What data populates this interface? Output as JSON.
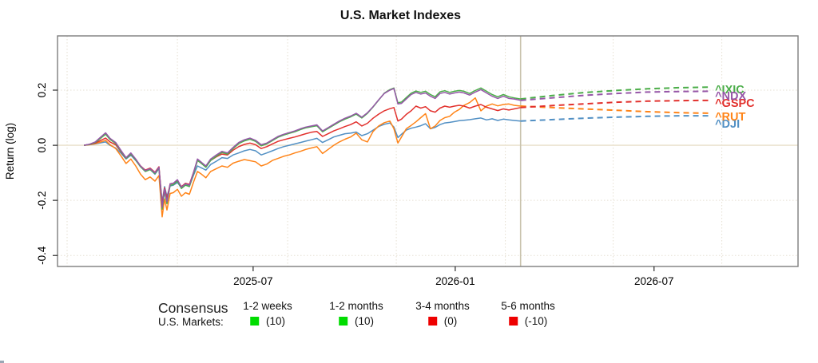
{
  "title": "U.S. Market Indexes",
  "chart_data": {
    "type": "line",
    "title": "U.S. Market Indexes",
    "xlabel": "",
    "ylabel": "Return (log)",
    "xlim": [
      2025.008,
      2026.855
    ],
    "ylim": [
      -0.44,
      0.397
    ],
    "x_ticks": [
      {
        "v": 2025.496,
        "label": "2025-07"
      },
      {
        "v": 2026.0,
        "label": "2026-01"
      },
      {
        "v": 2026.496,
        "label": "2026-07"
      }
    ],
    "y_ticks": [
      {
        "v": 0.2,
        "label": "0.2"
      },
      {
        "v": 0.0,
        "label": "0.0"
      },
      {
        "v": -0.2,
        "label": "-0.2"
      },
      {
        "v": -0.4,
        "label": "-0.4"
      }
    ],
    "x_gridlines": [
      2025.032,
      2025.307,
      2025.582,
      2025.853,
      2026.125,
      2026.394,
      2026.665
    ],
    "y_gridlines": [
      0.2,
      -0.2,
      -0.4
    ],
    "zero_line": 0.0,
    "today_line": 2026.163,
    "x_solid": [
      2025.074,
      2025.088,
      2025.102,
      2025.116,
      2025.128,
      2025.139,
      2025.153,
      2025.167,
      2025.179,
      2025.191,
      2025.203,
      2025.215,
      2025.227,
      2025.239,
      2025.251,
      2025.261,
      2025.269,
      2025.275,
      2025.281,
      2025.289,
      2025.297,
      2025.307,
      2025.317,
      2025.327,
      2025.337,
      2025.347,
      2025.357,
      2025.367,
      2025.378,
      2025.39,
      2025.404,
      2025.418,
      2025.432,
      2025.446,
      2025.46,
      2025.474,
      2025.488,
      2025.502,
      2025.516,
      2025.53,
      2025.544,
      2025.558,
      2025.572,
      2025.586,
      2025.6,
      2025.614,
      2025.627,
      2025.641,
      2025.655,
      2025.669,
      2025.683,
      2025.697,
      2025.711,
      2025.725,
      2025.739,
      2025.753,
      2025.767,
      2025.781,
      2025.795,
      2025.809,
      2025.823,
      2025.837,
      2025.847,
      2025.857,
      2025.866,
      2025.878,
      2025.89,
      2025.902,
      2025.914,
      2025.926,
      2025.938,
      2025.95,
      2025.962,
      2025.974,
      2025.986,
      2025.998,
      2026.01,
      2026.022,
      2026.036,
      2026.05,
      2026.064,
      2026.078,
      2026.092,
      2026.106,
      2026.12,
      2026.134,
      2026.147,
      2026.163
    ],
    "x_forecast": [
      2026.163,
      2026.24,
      2026.32,
      2026.4,
      2026.48,
      2026.56,
      2026.64
    ],
    "series": [
      {
        "name": "^DJI",
        "color": "#5290c4",
        "label_value": 0.078,
        "values": [
          0.0,
          0.002,
          0.005,
          0.009,
          0.012,
          0.0,
          -0.01,
          -0.03,
          -0.05,
          -0.036,
          -0.055,
          -0.078,
          -0.095,
          -0.088,
          -0.105,
          -0.085,
          -0.205,
          -0.15,
          -0.185,
          -0.148,
          -0.145,
          -0.135,
          -0.155,
          -0.145,
          -0.148,
          -0.11,
          -0.075,
          -0.082,
          -0.09,
          -0.07,
          -0.058,
          -0.045,
          -0.048,
          -0.035,
          -0.028,
          -0.02,
          -0.015,
          -0.02,
          -0.035,
          -0.028,
          -0.02,
          -0.012,
          -0.005,
          0.0,
          0.005,
          0.01,
          0.015,
          0.02,
          0.025,
          0.01,
          0.02,
          0.03,
          0.036,
          0.042,
          0.044,
          0.048,
          0.035,
          0.042,
          0.055,
          0.068,
          0.076,
          0.081,
          0.066,
          0.028,
          0.04,
          0.055,
          0.062,
          0.066,
          0.071,
          0.078,
          0.06,
          0.065,
          0.075,
          0.081,
          0.083,
          0.086,
          0.089,
          0.091,
          0.093,
          0.096,
          0.099,
          0.092,
          0.096,
          0.09,
          0.095,
          0.092,
          0.09,
          0.088
        ],
        "forecast": [
          0.088,
          0.093,
          0.098,
          0.102,
          0.105,
          0.107,
          0.107
        ]
      },
      {
        "name": "^RUT",
        "color": "#ff8418",
        "label_value": 0.104,
        "values": [
          0.0,
          0.002,
          0.006,
          0.012,
          0.018,
          0.002,
          -0.012,
          -0.04,
          -0.066,
          -0.05,
          -0.075,
          -0.105,
          -0.125,
          -0.115,
          -0.13,
          -0.11,
          -0.26,
          -0.195,
          -0.235,
          -0.175,
          -0.172,
          -0.16,
          -0.185,
          -0.172,
          -0.178,
          -0.135,
          -0.095,
          -0.105,
          -0.118,
          -0.095,
          -0.085,
          -0.075,
          -0.08,
          -0.065,
          -0.058,
          -0.052,
          -0.056,
          -0.06,
          -0.075,
          -0.068,
          -0.055,
          -0.048,
          -0.04,
          -0.035,
          -0.028,
          -0.022,
          -0.015,
          -0.01,
          -0.005,
          -0.03,
          -0.015,
          0.0,
          0.012,
          0.022,
          0.03,
          0.044,
          0.02,
          0.012,
          0.05,
          0.07,
          0.082,
          0.088,
          0.06,
          0.008,
          0.03,
          0.06,
          0.072,
          0.085,
          0.1,
          0.115,
          0.06,
          0.07,
          0.09,
          0.1,
          0.105,
          0.12,
          0.13,
          0.145,
          0.155,
          0.172,
          0.125,
          0.142,
          0.15,
          0.143,
          0.148,
          0.15,
          0.145,
          0.142
        ],
        "forecast": [
          0.142,
          0.137,
          0.132,
          0.127,
          0.122,
          0.118,
          0.116
        ]
      },
      {
        "name": "^GSPC",
        "color": "#e2312d",
        "label_value": 0.154,
        "values": [
          0.0,
          0.003,
          0.008,
          0.018,
          0.026,
          0.012,
          0.002,
          -0.025,
          -0.048,
          -0.032,
          -0.052,
          -0.075,
          -0.09,
          -0.083,
          -0.098,
          -0.078,
          -0.215,
          -0.155,
          -0.195,
          -0.14,
          -0.138,
          -0.128,
          -0.15,
          -0.138,
          -0.142,
          -0.1,
          -0.055,
          -0.065,
          -0.078,
          -0.055,
          -0.042,
          -0.032,
          -0.035,
          -0.018,
          -0.005,
          0.003,
          0.008,
          0.002,
          -0.012,
          -0.005,
          0.005,
          0.014,
          0.02,
          0.025,
          0.03,
          0.036,
          0.042,
          0.047,
          0.05,
          0.032,
          0.042,
          0.052,
          0.06,
          0.068,
          0.075,
          0.085,
          0.07,
          0.08,
          0.098,
          0.113,
          0.125,
          0.133,
          0.137,
          0.088,
          0.095,
          0.112,
          0.125,
          0.142,
          0.135,
          0.14,
          0.125,
          0.12,
          0.135,
          0.142,
          0.138,
          0.142,
          0.145,
          0.142,
          0.135,
          0.142,
          0.148,
          0.138,
          0.132,
          0.126,
          0.132,
          0.128,
          0.132,
          0.137
        ],
        "forecast": [
          0.137,
          0.144,
          0.15,
          0.156,
          0.16,
          0.162,
          0.163
        ]
      },
      {
        "name": "^IXIC",
        "color": "#4cae4a",
        "label_value": 0.203,
        "values": [
          0.0,
          0.003,
          0.01,
          0.026,
          0.04,
          0.021,
          0.007,
          -0.023,
          -0.048,
          -0.031,
          -0.053,
          -0.078,
          -0.095,
          -0.088,
          -0.103,
          -0.083,
          -0.232,
          -0.168,
          -0.212,
          -0.145,
          -0.143,
          -0.13,
          -0.157,
          -0.145,
          -0.15,
          -0.105,
          -0.055,
          -0.066,
          -0.08,
          -0.055,
          -0.04,
          -0.026,
          -0.032,
          -0.012,
          0.006,
          0.016,
          0.022,
          0.014,
          -0.002,
          0.005,
          0.017,
          0.029,
          0.037,
          0.043,
          0.049,
          0.057,
          0.063,
          0.067,
          0.071,
          0.049,
          0.061,
          0.073,
          0.085,
          0.095,
          0.103,
          0.113,
          0.099,
          0.116,
          0.139,
          0.164,
          0.189,
          0.202,
          0.208,
          0.154,
          0.157,
          0.173,
          0.189,
          0.197,
          0.192,
          0.196,
          0.184,
          0.176,
          0.194,
          0.198,
          0.192,
          0.196,
          0.199,
          0.196,
          0.188,
          0.199,
          0.208,
          0.196,
          0.184,
          0.176,
          0.184,
          0.176,
          0.172,
          0.168
        ],
        "forecast": [
          0.168,
          0.18,
          0.191,
          0.199,
          0.205,
          0.209,
          0.211
        ]
      },
      {
        "name": "^NDX",
        "color": "#9657a8",
        "label_value": 0.18,
        "values": [
          0.0,
          0.004,
          0.012,
          0.03,
          0.045,
          0.025,
          0.01,
          -0.02,
          -0.045,
          -0.028,
          -0.05,
          -0.075,
          -0.092,
          -0.085,
          -0.1,
          -0.08,
          -0.225,
          -0.16,
          -0.205,
          -0.14,
          -0.138,
          -0.125,
          -0.152,
          -0.14,
          -0.145,
          -0.1,
          -0.05,
          -0.062,
          -0.075,
          -0.05,
          -0.035,
          -0.022,
          -0.028,
          -0.008,
          0.01,
          0.02,
          0.026,
          0.018,
          0.002,
          0.008,
          0.02,
          0.032,
          0.04,
          0.046,
          0.052,
          0.06,
          0.066,
          0.07,
          0.074,
          0.052,
          0.064,
          0.076,
          0.088,
          0.098,
          0.106,
          0.116,
          0.102,
          0.118,
          0.14,
          0.165,
          0.188,
          0.2,
          0.206,
          0.15,
          0.152,
          0.168,
          0.184,
          0.192,
          0.186,
          0.19,
          0.178,
          0.17,
          0.188,
          0.192,
          0.186,
          0.19,
          0.193,
          0.19,
          0.182,
          0.193,
          0.202,
          0.19,
          0.178,
          0.17,
          0.178,
          0.17,
          0.168,
          0.163
        ],
        "forecast": [
          0.163,
          0.172,
          0.181,
          0.188,
          0.193,
          0.195,
          0.196
        ]
      }
    ]
  },
  "legend": {
    "title": "Consensus",
    "row_label": "U.S. Markets:",
    "columns": [
      {
        "label": "1-2 weeks",
        "value": "(10)",
        "color": "#00dc00"
      },
      {
        "label": "1-2 months",
        "value": "(10)",
        "color": "#00dc00"
      },
      {
        "label": "3-4 months",
        "value": "(0)",
        "color": "#ee0000"
      },
      {
        "label": "5-6 months",
        "value": "(-10)",
        "color": "#ee0000"
      }
    ]
  }
}
